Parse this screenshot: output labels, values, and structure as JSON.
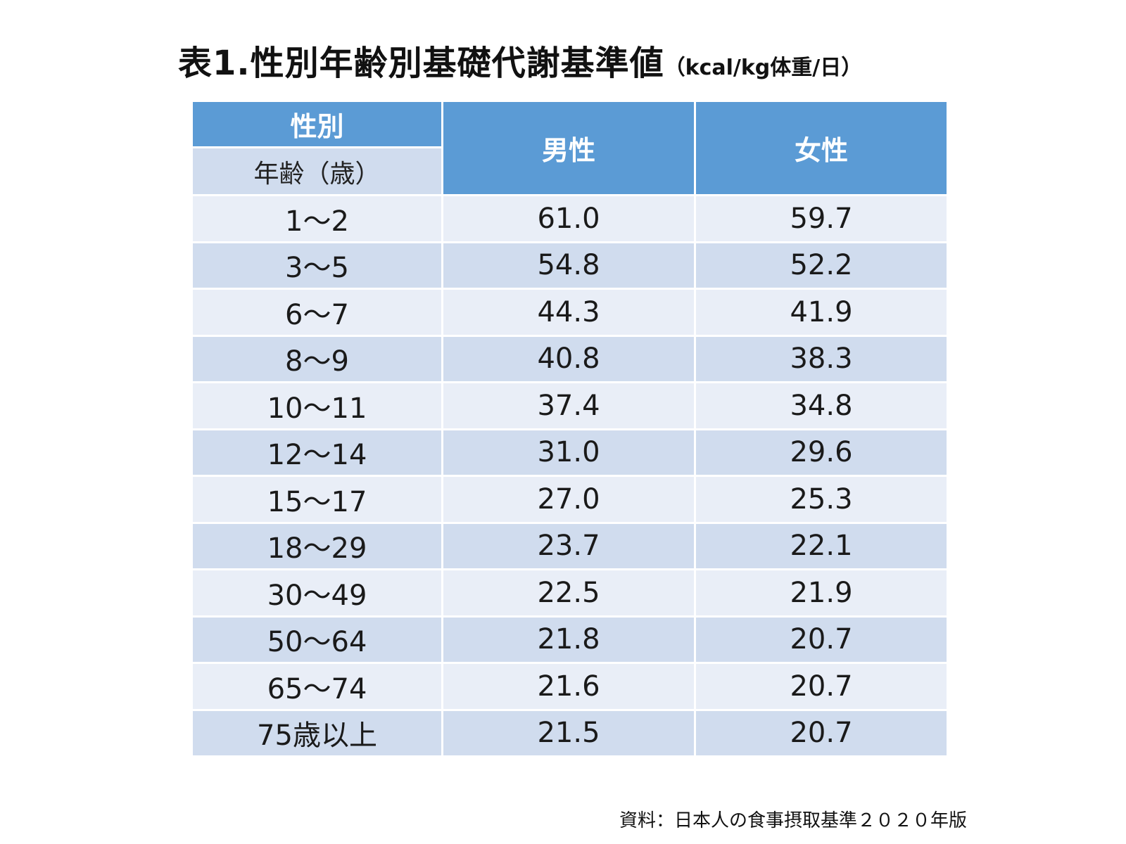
{
  "title": {
    "main": "表1.性別年齢別基礎代謝基準値",
    "unit": "（kcal/kg体重/日）"
  },
  "chart_data": {
    "type": "table",
    "title": "表1.性別年齢別基礎代謝基準値（kcal/kg体重/日）",
    "header": {
      "sex_label": "性別",
      "age_label": "年齢（歳）",
      "male": "男性",
      "female": "女性"
    },
    "rows": [
      {
        "age": "1～2",
        "male": "61.0",
        "female": "59.7"
      },
      {
        "age": "3～5",
        "male": "54.8",
        "female": "52.2"
      },
      {
        "age": "6～7",
        "male": "44.3",
        "female": "41.9"
      },
      {
        "age": "8～9",
        "male": "40.8",
        "female": "38.3"
      },
      {
        "age": "10～11",
        "male": "37.4",
        "female": "34.8"
      },
      {
        "age": "12～14",
        "male": "31.0",
        "female": "29.6"
      },
      {
        "age": "15～17",
        "male": "27.0",
        "female": "25.3"
      },
      {
        "age": "18～29",
        "male": "23.7",
        "female": "22.1"
      },
      {
        "age": "30～49",
        "male": "22.5",
        "female": "21.9"
      },
      {
        "age": "50～64",
        "male": "21.8",
        "female": "20.7"
      },
      {
        "age": "65～74",
        "male": "21.6",
        "female": "20.7"
      },
      {
        "age": "75歳以上",
        "male": "21.5",
        "female": "20.7"
      }
    ]
  },
  "source": "資料：日本人の食事摂取基準２０２０年版",
  "colors": {
    "header_blue": "#5b9bd5",
    "row_light": "#e9eef7",
    "row_dark": "#d0dcee"
  }
}
